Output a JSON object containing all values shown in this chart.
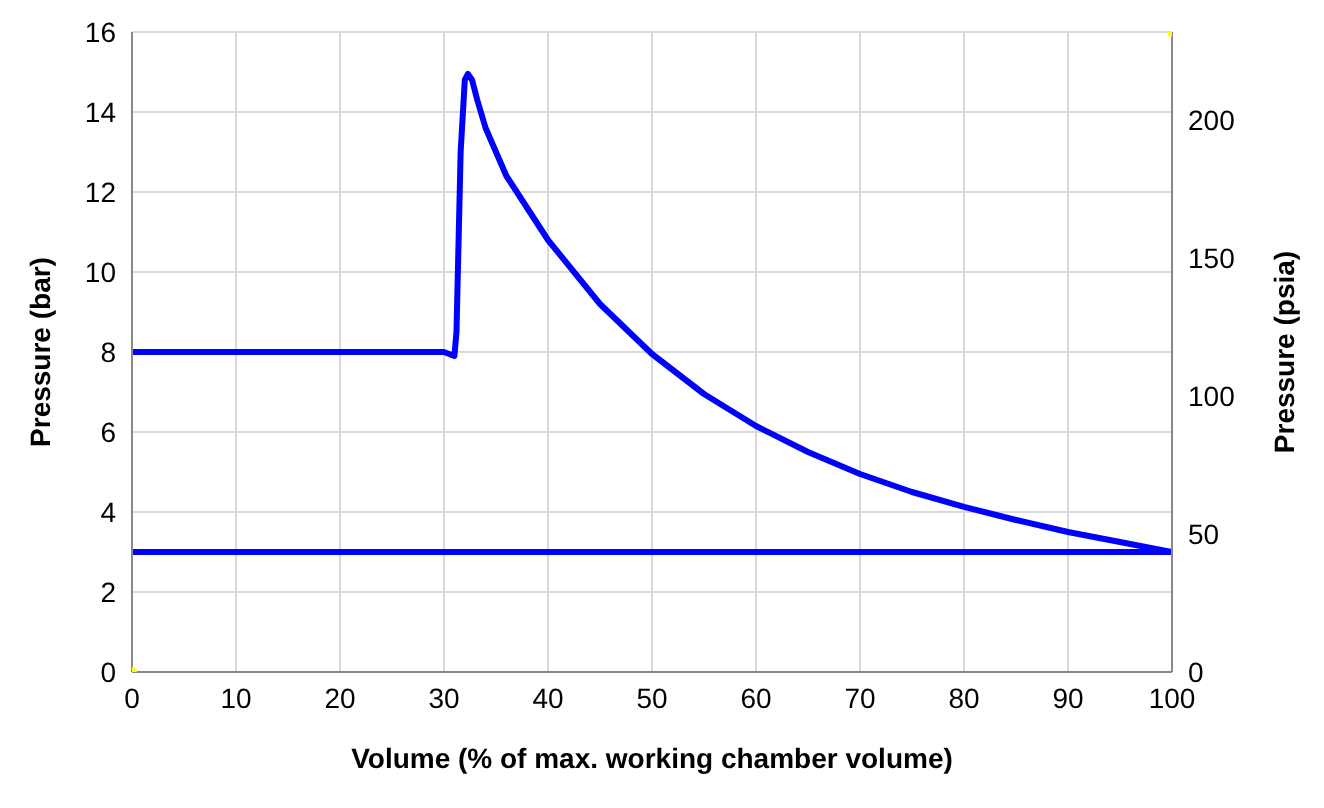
{
  "chart_data": {
    "type": "line",
    "xlabel": "Volume (% of max. working chamber volume)",
    "ylabel": "Pressure (bar)",
    "y2label": "Pressure (psia)",
    "xlim": [
      0,
      100
    ],
    "xticks": [
      0,
      10,
      20,
      30,
      40,
      50,
      60,
      70,
      80,
      90,
      100
    ],
    "ylim": [
      0,
      16
    ],
    "yticks": [
      0,
      2,
      4,
      6,
      8,
      10,
      12,
      14,
      16
    ],
    "y2lim": [
      0,
      232
    ],
    "y2ticks": [
      0,
      50,
      100,
      150,
      200
    ],
    "grid": true,
    "line_style": "solid",
    "series": [
      {
        "color": "#0000ff",
        "marker": "none",
        "x": [
          0,
          10,
          20,
          30,
          30.5,
          31,
          31.2,
          31.6,
          32,
          32.3,
          32.7,
          33.2,
          34,
          36,
          38,
          40,
          45,
          50,
          55,
          60,
          65,
          70,
          75,
          80,
          85,
          90,
          95,
          100,
          80,
          60,
          40,
          20,
          0
        ],
        "values": [
          8,
          8,
          8,
          8,
          7.95,
          7.9,
          8.5,
          13,
          14.8,
          14.95,
          14.8,
          14.3,
          13.6,
          12.4,
          11.6,
          10.8,
          9.2,
          7.95,
          6.95,
          6.15,
          5.5,
          4.95,
          4.5,
          4.13,
          3.8,
          3.5,
          3.25,
          3,
          3,
          3,
          3,
          3,
          3
        ]
      },
      {
        "type": "scatter",
        "marker": "circle",
        "color": "#ffff00",
        "axis": "y2",
        "x": [
          0,
          100
        ],
        "values": [
          0,
          232
        ]
      }
    ]
  }
}
